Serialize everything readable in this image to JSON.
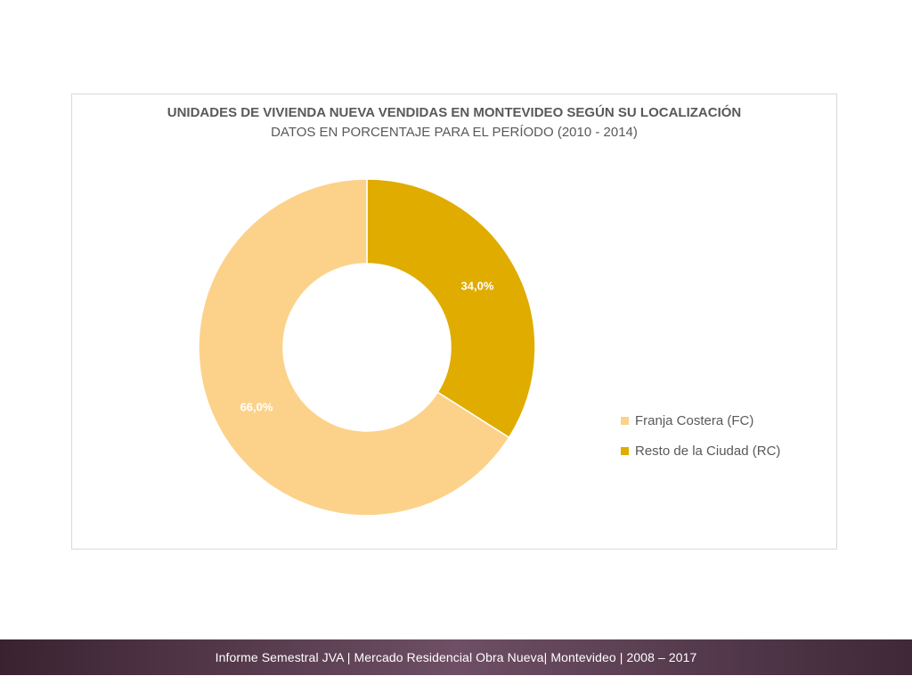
{
  "chart_data": {
    "type": "pie",
    "title": "UNIDADES DE VIVIENDA NUEVA VENDIDAS EN MONTEVIDEO SEGÚN SU LOCALIZACIÓN",
    "subtitle": "DATOS EN PORCENTAJE PARA EL PERÍODO (2010 - 2014)",
    "donut": true,
    "legend_position": "right",
    "slices": [
      {
        "label": "Resto de la Ciudad (RC)",
        "value": 34.0,
        "data_label": "34,0%",
        "color": "#e0ac00"
      },
      {
        "label": "Franja Costera (FC)",
        "value": 66.0,
        "data_label": "66,0%",
        "color": "#fcd28a"
      }
    ],
    "legend": [
      {
        "label": "Franja Costera (FC)",
        "color": "#fcd28a"
      },
      {
        "label": "Resto de la Ciudad (RC)",
        "color": "#e0ac00"
      }
    ]
  },
  "footer": {
    "text": "Informe Semestral JVA | Mercado Residencial Obra Nueva| Montevideo | 2008 – 2017"
  }
}
